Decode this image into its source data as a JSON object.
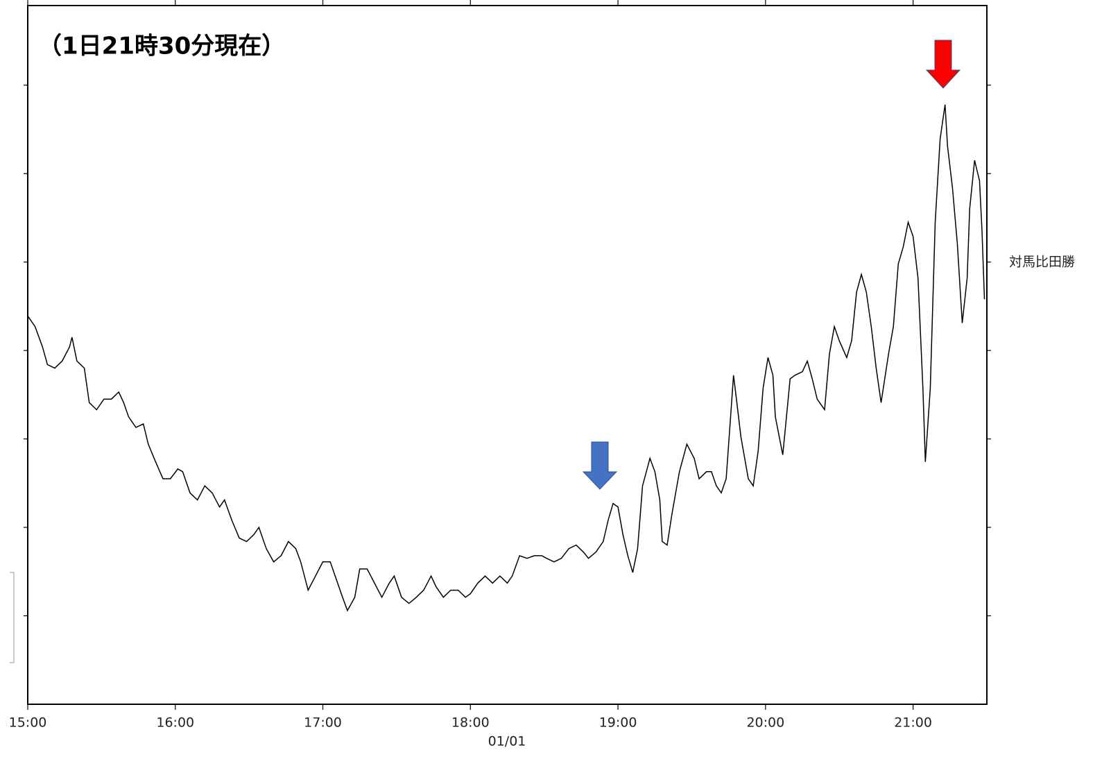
{
  "chart_data": {
    "type": "line",
    "annotation": "（1日21時30分現在）",
    "xlabel": "01/01",
    "x": [
      "15:00",
      "15:03",
      "15:06",
      "15:08",
      "15:11",
      "15:14",
      "15:17",
      "15:18",
      "15:20",
      "15:23",
      "15:25",
      "15:28",
      "15:31",
      "15:34",
      "15:37",
      "15:39",
      "15:41",
      "15:44",
      "15:47",
      "15:49",
      "15:52",
      "15:55",
      "15:58",
      "16:01",
      "16:03",
      "16:06",
      "16:09",
      "16:12",
      "16:15",
      "16:18",
      "16:20",
      "16:23",
      "16:26",
      "16:29",
      "16:32",
      "16:34",
      "16:37",
      "16:40",
      "16:43",
      "16:46",
      "16:49",
      "16:51",
      "16:54",
      "16:57",
      "17:00",
      "17:03",
      "17:05",
      "17:08",
      "17:10",
      "17:13",
      "17:15",
      "17:18",
      "17:21",
      "17:24",
      "17:27",
      "17:29",
      "17:32",
      "17:35",
      "17:38",
      "17:41",
      "17:44",
      "17:46",
      "17:49",
      "17:52",
      "17:55",
      "17:58",
      "18:00",
      "18:03",
      "18:06",
      "18:09",
      "18:12",
      "18:15",
      "18:17",
      "18:20",
      "18:23",
      "18:26",
      "18:29",
      "18:31",
      "18:34",
      "18:37",
      "18:40",
      "18:43",
      "18:46",
      "18:48",
      "18:51",
      "18:54",
      "18:56",
      "18:58",
      "19:00",
      "19:02",
      "19:04",
      "19:06",
      "19:08",
      "19:10",
      "19:13",
      "19:15",
      "19:17",
      "19:18",
      "19:20",
      "19:22",
      "19:25",
      "19:28",
      "19:31",
      "19:33",
      "19:36",
      "19:38",
      "19:40",
      "19:42",
      "19:44",
      "19:46",
      "19:47",
      "19:48",
      "19:50",
      "19:53",
      "19:55",
      "19:57",
      "19:59",
      "20:01",
      "20:03",
      "20:04",
      "20:07",
      "20:08",
      "20:10",
      "20:12",
      "20:15",
      "20:17",
      "20:19",
      "20:21",
      "20:24",
      "20:26",
      "20:28",
      "20:30",
      "20:33",
      "20:35",
      "20:37",
      "20:39",
      "20:41",
      "20:43",
      "20:45",
      "20:47",
      "20:50",
      "20:52",
      "20:54",
      "20:56",
      "20:58",
      "21:00",
      "21:02",
      "21:04",
      "21:05",
      "21:07",
      "21:09",
      "21:11",
      "21:13",
      "21:14",
      "21:16",
      "21:18",
      "21:20",
      "21:22",
      "21:23",
      "21:25",
      "21:27",
      "21:28",
      "21:29"
    ],
    "series": [
      {
        "name": "対馬比田勝",
        "color": "#000000",
        "values": [
          4.39,
          4.27,
          4.04,
          3.84,
          3.8,
          3.88,
          4.04,
          4.15,
          3.88,
          3.8,
          3.41,
          3.33,
          3.45,
          3.45,
          3.53,
          3.41,
          3.25,
          3.13,
          3.17,
          2.94,
          2.74,
          2.55,
          2.55,
          2.66,
          2.63,
          2.39,
          2.31,
          2.47,
          2.39,
          2.23,
          2.31,
          2.08,
          1.88,
          1.84,
          1.92,
          2.0,
          1.76,
          1.61,
          1.68,
          1.84,
          1.76,
          1.61,
          1.29,
          1.45,
          1.61,
          1.61,
          1.45,
          1.21,
          1.06,
          1.21,
          1.53,
          1.53,
          1.37,
          1.21,
          1.37,
          1.45,
          1.21,
          1.14,
          1.21,
          1.29,
          1.45,
          1.33,
          1.21,
          1.29,
          1.29,
          1.21,
          1.25,
          1.37,
          1.45,
          1.37,
          1.45,
          1.37,
          1.45,
          1.68,
          1.65,
          1.68,
          1.68,
          1.65,
          1.61,
          1.65,
          1.76,
          1.8,
          1.72,
          1.65,
          1.72,
          1.84,
          2.08,
          2.27,
          2.23,
          1.92,
          1.68,
          1.49,
          1.76,
          2.47,
          2.78,
          2.63,
          2.31,
          1.84,
          1.8,
          2.16,
          2.63,
          2.94,
          2.78,
          2.55,
          2.63,
          2.63,
          2.47,
          2.39,
          2.55,
          3.33,
          3.72,
          3.49,
          3.02,
          2.55,
          2.47,
          2.86,
          3.57,
          3.92,
          3.72,
          3.25,
          2.82,
          3.1,
          3.68,
          3.72,
          3.76,
          3.88,
          3.68,
          3.45,
          3.33,
          3.96,
          4.27,
          4.11,
          3.92,
          4.11,
          4.66,
          4.86,
          4.66,
          4.27,
          3.8,
          3.41,
          3.96,
          4.27,
          4.98,
          5.17,
          5.45,
          5.29,
          4.82,
          3.57,
          2.74,
          3.57,
          5.45,
          6.39,
          6.78,
          6.31,
          5.84,
          5.21,
          4.31,
          4.82,
          5.6,
          6.15,
          5.92,
          5.37,
          4.58
        ]
      }
    ],
    "xlim": [
      "15:00",
      "21:30"
    ],
    "xticks": [
      "15:00",
      "16:00",
      "17:00",
      "18:00",
      "19:00",
      "20:00",
      "21:00"
    ],
    "ylim": [
      0,
      7.9
    ],
    "yticks": [
      1,
      2,
      3,
      4,
      5,
      6,
      7
    ]
  }
}
